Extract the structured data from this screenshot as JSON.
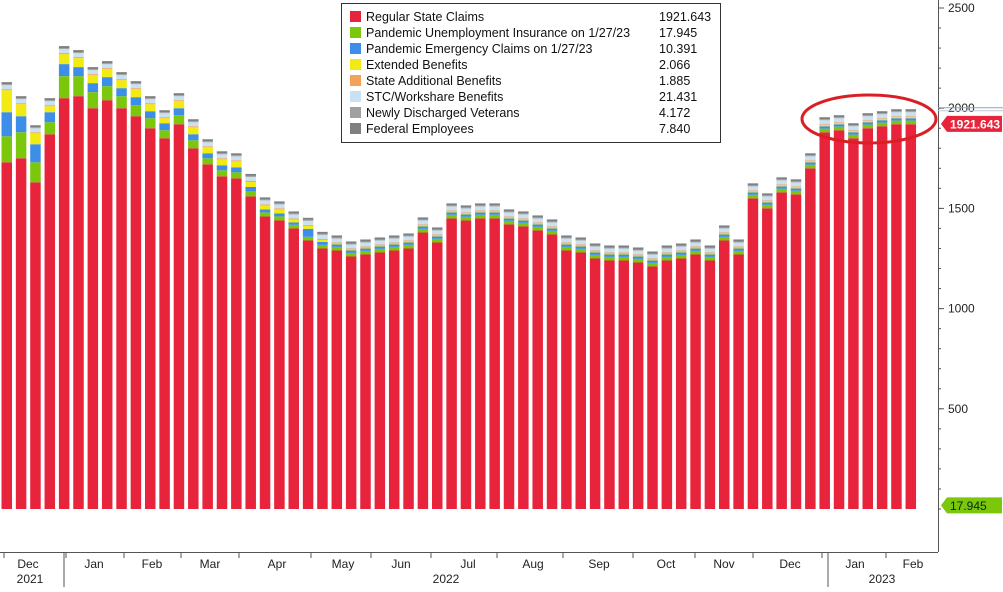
{
  "chart_data": {
    "type": "bar",
    "stacked": true,
    "title": "",
    "xlabel": "",
    "ylabel": "",
    "ylim": [
      0,
      2500
    ],
    "y_ticks": [
      500,
      1000,
      1500,
      2000,
      2500
    ],
    "y_axis_side": "right",
    "grid": false,
    "legend_placement": "top-center",
    "x_month_labels": [
      "Dec",
      "Jan",
      "Feb",
      "Mar",
      "Apr",
      "May",
      "Jun",
      "Jul",
      "Aug",
      "Sep",
      "Oct",
      "Nov",
      "Dec",
      "Jan",
      "Feb"
    ],
    "x_year_labels": [
      "2021",
      "2022",
      "2023"
    ],
    "legend": [
      {
        "name": "Regular State Claims",
        "value": "1921.643",
        "color": "#e8243c"
      },
      {
        "name": "Pandemic Unemployment Insurance on 1/27/23",
        "value": "17.945",
        "color": "#7ac70c"
      },
      {
        "name": "Pandemic Emergency Claims on 1/27/23",
        "value": "10.391",
        "color": "#3d8ee8"
      },
      {
        "name": "Extended Benefits",
        "value": "2.066",
        "color": "#f2ea13"
      },
      {
        "name": "State Additional Benefits",
        "value": "1.885",
        "color": "#f4a15a"
      },
      {
        "name": "STC/Workshare Benefits",
        "value": "21.431",
        "color": "#c8e2f4"
      },
      {
        "name": "Newly Discharged Veterans",
        "value": "4.172",
        "color": "#a0a0a0"
      },
      {
        "name": "Federal Employees",
        "value": "7.840",
        "color": "#808080"
      }
    ],
    "flags": [
      {
        "label": "1921.643",
        "value": 1921.643,
        "color": "#e8243c"
      },
      {
        "label": "17.945",
        "value": 17.945,
        "color": "#7ac70c"
      }
    ],
    "regular_state_claims": [
      1730,
      1750,
      1630,
      1870,
      2050,
      2060,
      2000,
      2040,
      2000,
      1960,
      1900,
      1850,
      1920,
      1800,
      1720,
      1660,
      1650,
      1560,
      1460,
      1440,
      1400,
      1340,
      1300,
      1290,
      1260,
      1270,
      1280,
      1290,
      1300,
      1380,
      1330,
      1450,
      1440,
      1450,
      1450,
      1420,
      1410,
      1390,
      1370,
      1290,
      1280,
      1250,
      1240,
      1240,
      1230,
      1210,
      1240,
      1250,
      1270,
      1240,
      1340,
      1270,
      1550,
      1500,
      1580,
      1570,
      1700,
      1880,
      1890,
      1850,
      1900,
      1910,
      1920,
      1920
    ],
    "pui": [
      130,
      130,
      100,
      60,
      110,
      100,
      80,
      70,
      60,
      55,
      50,
      40,
      45,
      40,
      30,
      30,
      30,
      25,
      20,
      20,
      18,
      18,
      18,
      18,
      18,
      18,
      18,
      18,
      18,
      18,
      18,
      18,
      18,
      18,
      18,
      18,
      18,
      18,
      18,
      18,
      18,
      18,
      18,
      18,
      18,
      18,
      18,
      18,
      18,
      18,
      18,
      18,
      18,
      18,
      18,
      18,
      18,
      18,
      18,
      18,
      18,
      18,
      18,
      18
    ],
    "pec": [
      120,
      80,
      90,
      50,
      60,
      45,
      45,
      45,
      40,
      40,
      35,
      35,
      35,
      30,
      25,
      25,
      25,
      22,
      15,
      15,
      12,
      40,
      15,
      12,
      12,
      12,
      12,
      12,
      12,
      12,
      12,
      12,
      12,
      12,
      12,
      12,
      12,
      12,
      12,
      12,
      12,
      12,
      12,
      12,
      12,
      12,
      12,
      12,
      12,
      12,
      12,
      12,
      12,
      12,
      12,
      12,
      12,
      12,
      12,
      12,
      12,
      12,
      12,
      12
    ],
    "extended": [
      110,
      60,
      55,
      30,
      50,
      45,
      40,
      40,
      40,
      40,
      35,
      25,
      35,
      35,
      30,
      30,
      30,
      25,
      20,
      20,
      15,
      15,
      10,
      5,
      5,
      5,
      5,
      5,
      5,
      5,
      5,
      5,
      5,
      5,
      5,
      5,
      5,
      5,
      5,
      5,
      5,
      5,
      5,
      5,
      5,
      5,
      5,
      5,
      5,
      5,
      5,
      5,
      5,
      5,
      5,
      5,
      5,
      5,
      5,
      5,
      5,
      5,
      5,
      5
    ],
    "state_additional": [
      5,
      5,
      5,
      5,
      5,
      5,
      5,
      5,
      5,
      5,
      5,
      5,
      5,
      5,
      5,
      5,
      5,
      5,
      5,
      5,
      5,
      5,
      5,
      5,
      5,
      5,
      5,
      5,
      5,
      5,
      5,
      5,
      5,
      5,
      5,
      5,
      5,
      5,
      5,
      5,
      5,
      5,
      5,
      5,
      5,
      5,
      5,
      5,
      5,
      5,
      5,
      5,
      5,
      5,
      5,
      5,
      5,
      5,
      5,
      5,
      5,
      5,
      5,
      5
    ],
    "stc_workshare": [
      20,
      20,
      20,
      20,
      20,
      20,
      20,
      20,
      20,
      20,
      20,
      20,
      20,
      20,
      20,
      20,
      20,
      20,
      20,
      20,
      20,
      20,
      20,
      20,
      20,
      20,
      20,
      20,
      20,
      20,
      20,
      20,
      20,
      20,
      20,
      20,
      20,
      20,
      20,
      20,
      20,
      20,
      20,
      20,
      20,
      20,
      20,
      20,
      20,
      20,
      20,
      20,
      20,
      20,
      20,
      20,
      20,
      20,
      20,
      20,
      20,
      20,
      20,
      20
    ],
    "veterans": [
      5,
      5,
      5,
      5,
      5,
      5,
      5,
      5,
      5,
      5,
      5,
      5,
      5,
      5,
      5,
      5,
      5,
      5,
      5,
      5,
      5,
      5,
      5,
      5,
      5,
      5,
      5,
      5,
      5,
      5,
      5,
      5,
      5,
      5,
      5,
      5,
      5,
      5,
      5,
      5,
      5,
      5,
      5,
      5,
      5,
      5,
      5,
      5,
      5,
      5,
      5,
      5,
      5,
      5,
      5,
      5,
      5,
      5,
      5,
      5,
      5,
      5,
      5,
      5
    ],
    "federal": [
      10,
      10,
      10,
      10,
      10,
      10,
      10,
      10,
      10,
      10,
      10,
      10,
      10,
      10,
      10,
      10,
      10,
      10,
      10,
      10,
      10,
      10,
      10,
      10,
      10,
      10,
      10,
      10,
      10,
      10,
      10,
      10,
      10,
      10,
      10,
      10,
      10,
      10,
      10,
      10,
      10,
      10,
      10,
      10,
      10,
      10,
      10,
      10,
      10,
      10,
      10,
      10,
      10,
      10,
      10,
      10,
      10,
      10,
      10,
      10,
      10,
      10,
      10,
      10
    ]
  }
}
